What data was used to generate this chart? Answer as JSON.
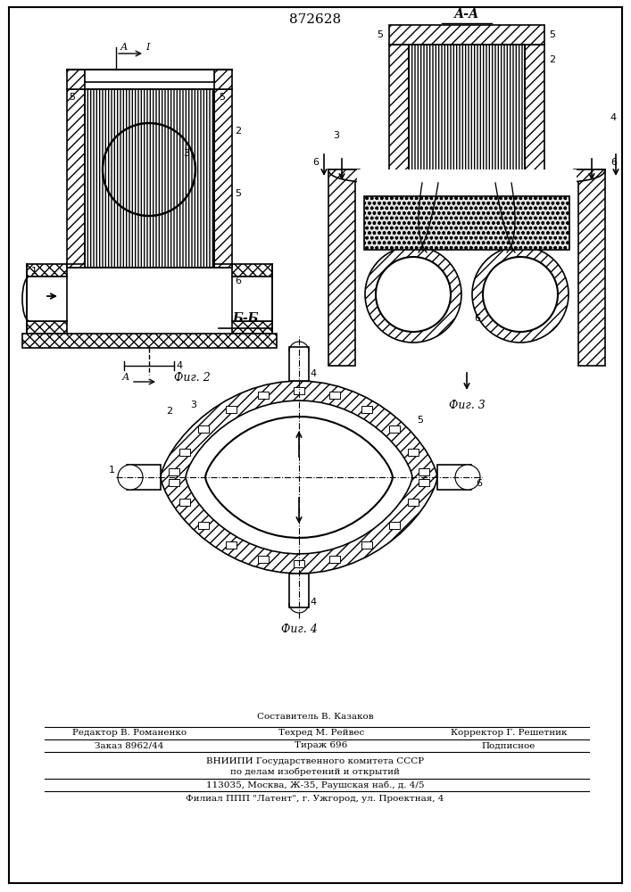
{
  "title": "872628",
  "bg_color": "#ffffff",
  "fig2_label": "Фиг. 2",
  "fig3_label": "Фиг. 3",
  "fig4_label": "Фиг. 4",
  "section_aa": "А-А",
  "section_bb": "Б-Б",
  "footer_line1": "Составитель В. Казаков",
  "footer_line2a": "Редактор В. Романенко",
  "footer_line2b": "Техред М. Рейвес",
  "footer_line2c": "Корректор Г. Решетник",
  "footer_line3a": "Заказ 8962/44",
  "footer_line3b": "Тираж 696",
  "footer_line3c": "Подписное",
  "footer_line4": "ВНИИПИ Государственного комитета СССР",
  "footer_line5": "по делам изобретений и открытий",
  "footer_line6": "113035, Москва, Ж-35, Раушская наб., д. 4/5",
  "footer_line7": "Филиал ППП \"Латент\", г. Ужгород, ул. Проектная, 4",
  "line_width": 1.2
}
